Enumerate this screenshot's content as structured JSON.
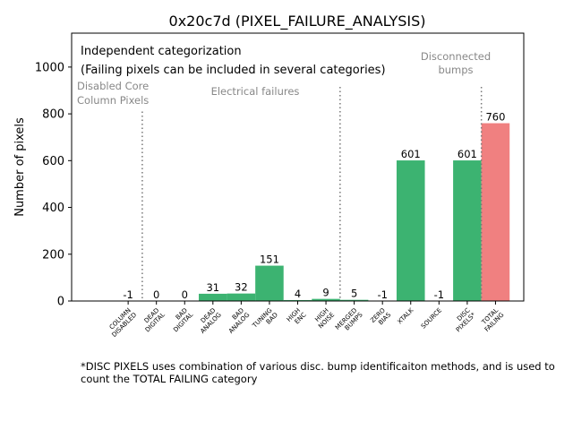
{
  "chart_data": {
    "type": "bar",
    "title": "0x20c7d (PIXEL_FAILURE_ANALYSIS)",
    "xlabel": "",
    "ylabel": "Number of pixels",
    "ylim": [
      0,
      1145
    ],
    "xlim": [
      -2,
      14
    ],
    "yticks": [
      0,
      200,
      400,
      600,
      800,
      1000
    ],
    "grid": false,
    "categories": [
      "COLUMN\nDISABLED",
      "DEAD\nDIGITAL",
      "BAD\nDIGITAL",
      "DEAD\nANALOG",
      "BAD\nANALOG",
      "TUNING\nBAD",
      "HIGH\nENC",
      "HIGH\nNOISE",
      "MERGED\nBUMPS",
      "ZERO\nBIAS",
      "XTALK",
      "SOURCE",
      "DISC\nPIXELS*",
      "TOTAL\nFAILING"
    ],
    "values": [
      -1,
      0,
      0,
      31,
      32,
      151,
      4,
      9,
      5,
      -1,
      601,
      -1,
      601,
      760
    ],
    "bar_colors": [
      "#3cb371",
      "#3cb371",
      "#3cb371",
      "#3cb371",
      "#3cb371",
      "#3cb371",
      "#3cb371",
      "#3cb371",
      "#3cb371",
      "#3cb371",
      "#3cb371",
      "#3cb371",
      "#3cb371",
      "#f08080"
    ],
    "separators": [
      {
        "x": 0.5,
        "top": 810,
        "label": "Disabled Core\nColumn Pixels"
      },
      {
        "x": 7.5,
        "top": 915,
        "label": "Electrical failures"
      },
      {
        "x": 12.5,
        "top": 915,
        "label": "Disconnected\nbumps"
      }
    ],
    "annotations": [
      "Independent categorization",
      "(Failing pixels can be included in several categories)"
    ]
  },
  "footnote": "*DISC PIXELS uses combination of various disc. bump identificaiton methods, and is used to count the TOTAL FAILING category"
}
